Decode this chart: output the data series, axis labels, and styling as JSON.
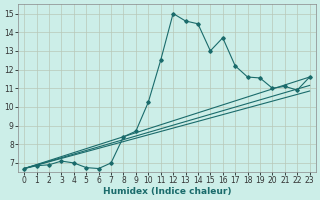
{
  "xlabel": "Humidex (Indice chaleur)",
  "bg_color": "#cceee8",
  "grid_color": "#b8c8b8",
  "line_color": "#1a6b6b",
  "x_ticks": [
    0,
    1,
    2,
    3,
    4,
    5,
    6,
    7,
    8,
    9,
    10,
    11,
    12,
    13,
    14,
    15,
    16,
    17,
    18,
    19,
    20,
    21,
    22,
    23
  ],
  "y_ticks": [
    7,
    8,
    9,
    10,
    11,
    12,
    13,
    14,
    15
  ],
  "ylim": [
    6.5,
    15.5
  ],
  "xlim": [
    -0.5,
    23.5
  ],
  "line1_x": [
    0,
    1,
    2,
    3,
    4,
    5,
    6,
    7,
    8,
    9,
    10,
    11,
    12,
    13,
    14,
    15,
    16,
    17,
    18,
    19,
    20,
    21,
    22,
    23
  ],
  "line1_y": [
    6.7,
    6.85,
    6.9,
    7.1,
    7.0,
    6.75,
    6.7,
    7.0,
    8.4,
    8.7,
    10.25,
    12.5,
    15.0,
    14.6,
    14.45,
    13.0,
    13.7,
    12.2,
    11.6,
    11.55,
    11.0,
    11.1,
    10.9,
    11.6
  ],
  "line2_x": [
    0,
    23
  ],
  "line2_y": [
    6.7,
    11.6
  ],
  "line3_x": [
    0,
    23
  ],
  "line3_y": [
    6.7,
    11.15
  ],
  "line4_x": [
    0,
    23
  ],
  "line4_y": [
    6.7,
    10.85
  ],
  "tick_fontsize": 5.5,
  "xlabel_fontsize": 6.5
}
